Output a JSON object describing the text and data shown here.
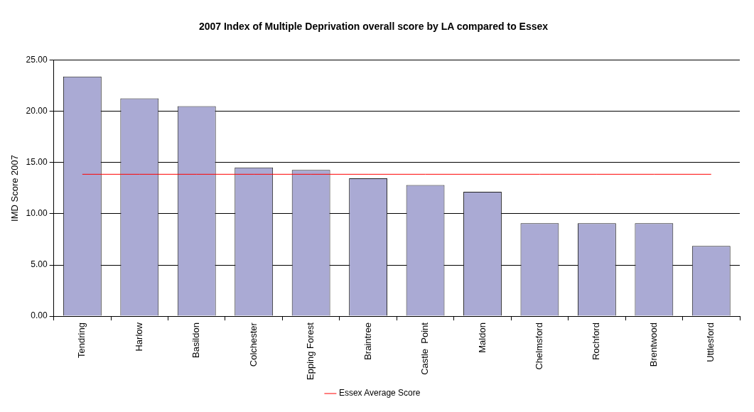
{
  "chart_data": {
    "type": "bar",
    "title": "2007 Index of Multiple Deprivation overall score by LA compared to Essex",
    "ylabel": "IMD Score 2007",
    "categories": [
      "Tendring",
      "Harlow",
      "Basildon",
      "Colchester",
      "Epping Forest",
      "Braintree",
      "Castle  Point",
      "Maldon",
      "Chelmsford",
      "Rochford",
      "Brentwood",
      "Uttlesford"
    ],
    "series": [
      {
        "color": "#aaaad4",
        "values": [
          23.4,
          21.27,
          20.51,
          14.52,
          14.28,
          13.47,
          12.81,
          12.15,
          9.07,
          9.07,
          9.07,
          6.85
        ]
      },
      {
        "type": "line",
        "name": "Essex Average Score",
        "color": "#ff0000",
        "values": [
          13.86,
          13.86,
          13.86,
          13.86,
          13.86,
          13.86,
          13.86,
          13.86,
          13.86,
          13.86,
          13.86,
          13.86
        ]
      }
    ],
    "ylim": [
      0,
      25
    ],
    "yticks": [
      {
        "value": 0,
        "label": "0.00"
      },
      {
        "value": 5,
        "label": "5.00"
      },
      {
        "value": 10,
        "label": "10.00"
      },
      {
        "value": 15,
        "label": "15.00"
      },
      {
        "value": 20,
        "label": "20.00"
      },
      {
        "value": 25,
        "label": "25.00"
      }
    ],
    "grid": "y",
    "legend": "bottom",
    "marker": "none"
  }
}
